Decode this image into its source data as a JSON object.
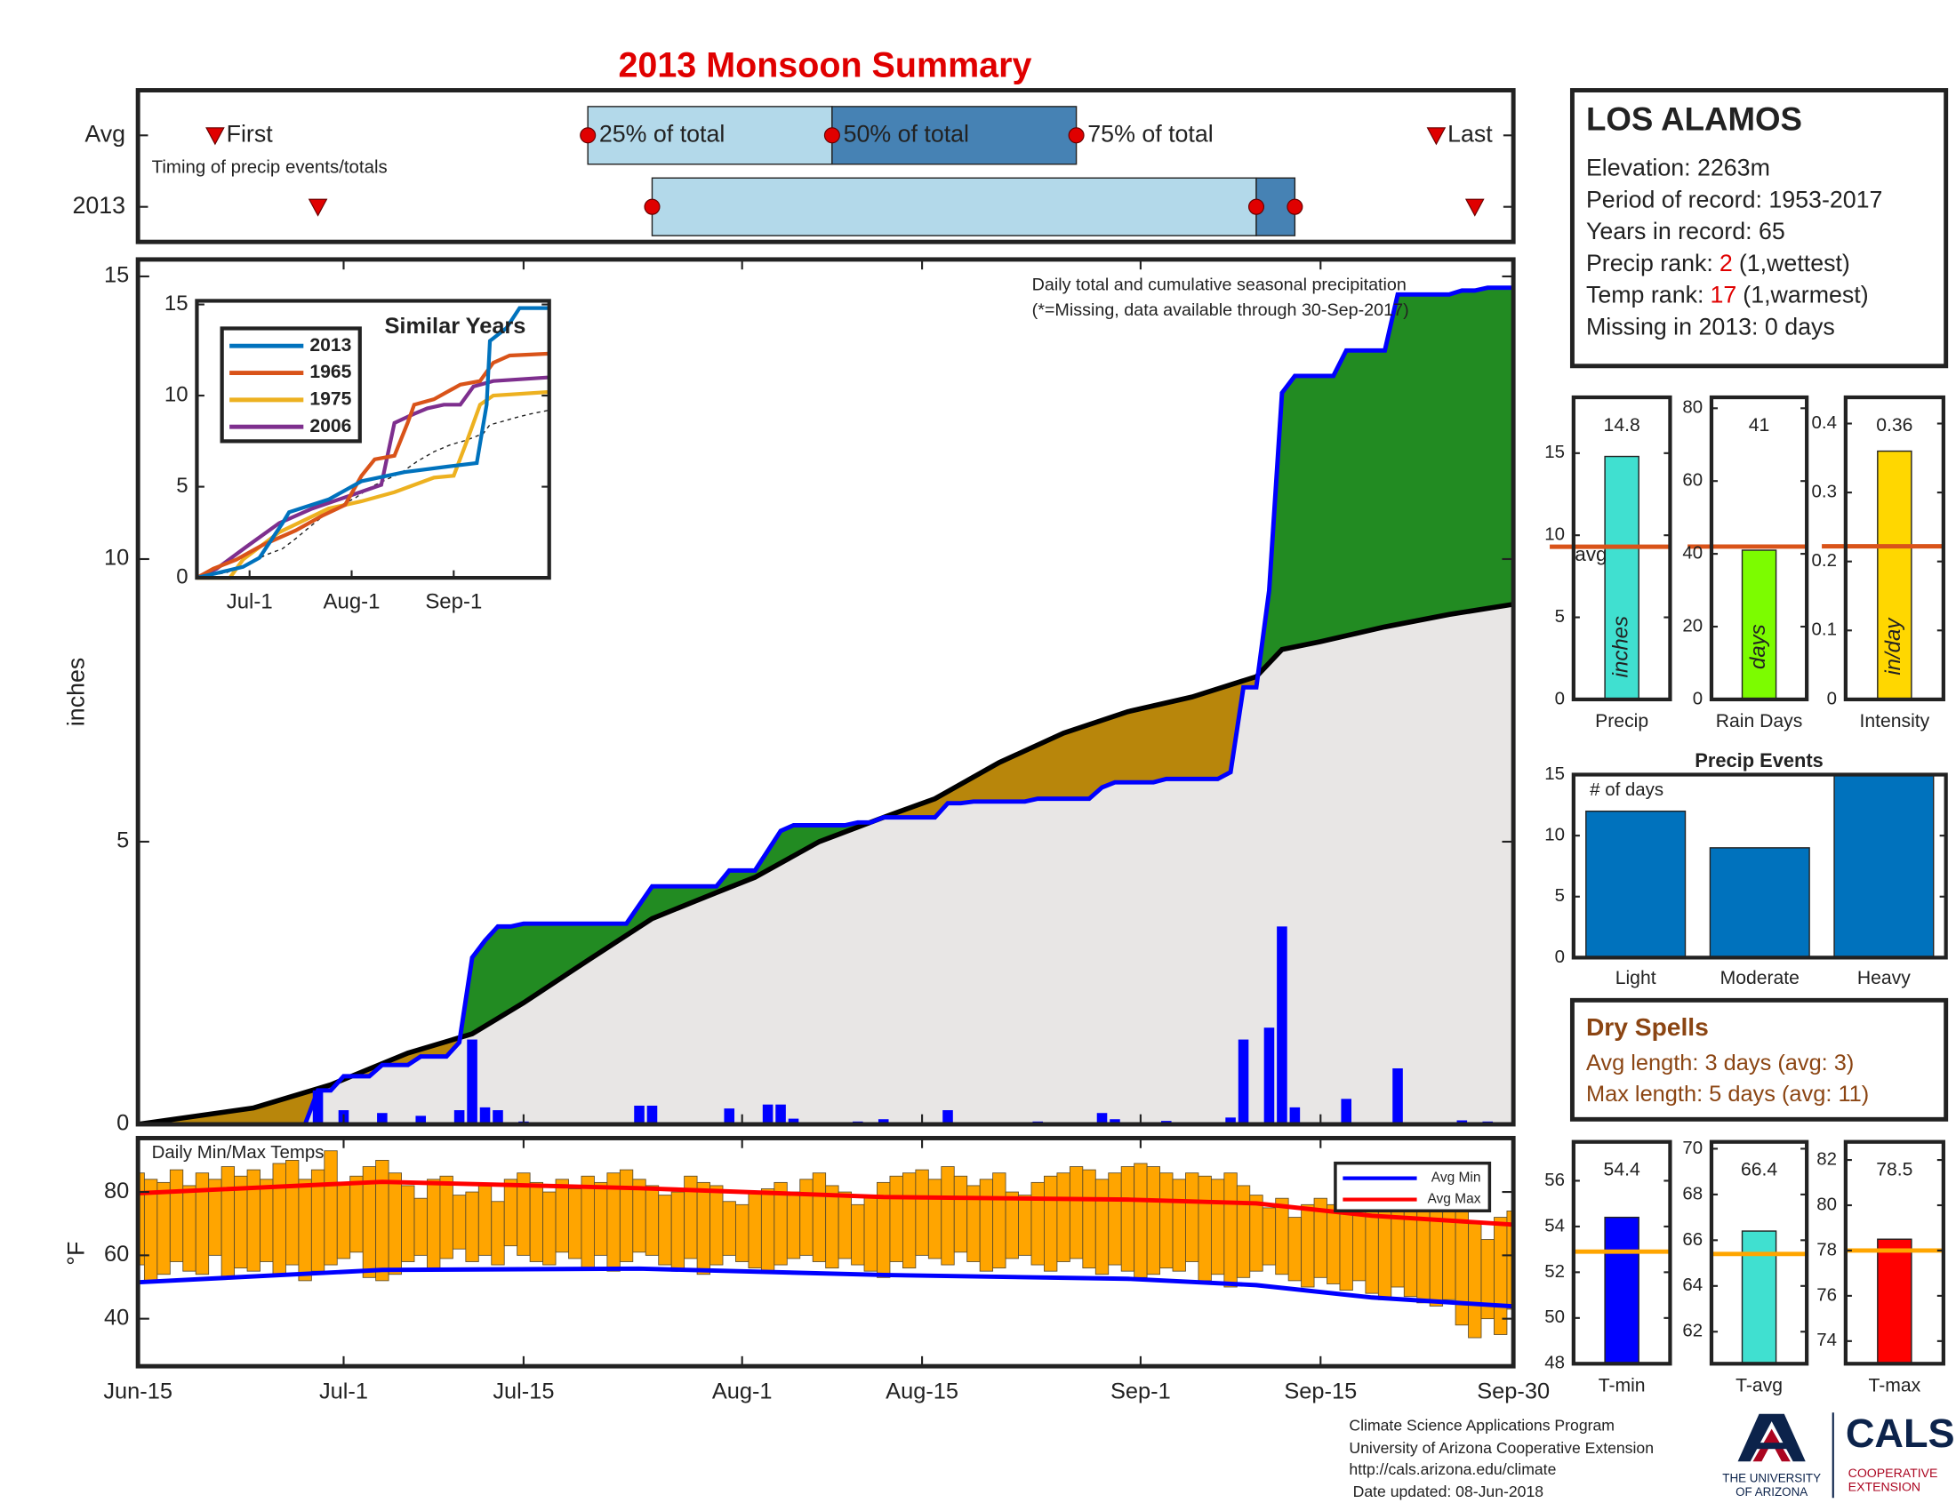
{
  "title": "2013 Monsoon Summary",
  "info": {
    "name": "LOS ALAMOS",
    "lines": [
      "Elevation: 2263m",
      "Period of record: 1953-2017",
      "Years in record: 65",
      {
        "label": "Precip rank:",
        "value": 2,
        "note": "(1,wettest)"
      },
      {
        "label": "Temp rank:",
        "value": 17,
        "note": "(1,warmest)"
      },
      "Missing in 2013: 0 days"
    ]
  },
  "dry_spells": {
    "title": "Dry Spells",
    "lines": [
      "Avg length: 3 days (avg: 3)",
      "Max length: 5 days (avg: 11)"
    ]
  },
  "footer": [
    "Climate Science Applications Program",
    "University of Arizona Cooperative Extension",
    "http://cals.arizona.edu/climate",
    "Date updated: 08-Jun-2018"
  ],
  "logos": {
    "university": [
      "THE UNIVERSITY",
      "OF ARIZONA"
    ],
    "college": "CALS",
    "extension": [
      "COOPERATIVE",
      "EXTENSION"
    ]
  },
  "chart_data": [
    {
      "type": "timing",
      "note": "Timing of precip events/totals",
      "markers": [
        "First",
        "25% of total",
        "50% of total",
        "75% of total",
        "Last"
      ],
      "colors": [
        "#b3d9ea",
        "#4682b4"
      ],
      "marker_color": "#e00000",
      "series": [
        {
          "name": "Avg",
          "values": [
            6,
            35,
            54,
            73,
            101
          ]
        },
        {
          "name": "2013",
          "values": [
            14,
            40,
            87,
            90,
            104
          ]
        }
      ]
    },
    {
      "type": "cumulative",
      "annotation": "Daily total and cumulative seasonal precipitation",
      "note": "(*=Missing, data available through 30-Sep-2017)",
      "ylabel": "inches",
      "ylim": [
        0,
        15.3
      ],
      "yticks": [
        0,
        5,
        10,
        15
      ],
      "colors": {
        "daily": "#0000ff",
        "cumulative": "#0000ff",
        "average": "#000000",
        "above": "#228b22",
        "below": "#b8860b",
        "base": "#e8e6e5"
      },
      "daily": [
        0,
        0,
        0,
        0,
        0,
        0,
        0,
        0,
        0,
        0,
        0,
        0,
        0,
        0,
        0.6,
        0,
        0.25,
        0,
        0,
        0.2,
        0,
        0,
        0.15,
        0,
        0,
        0.25,
        1.5,
        0.3,
        0.25,
        0,
        0.05,
        0,
        0,
        0,
        0,
        0,
        0,
        0,
        0,
        0.33,
        0.33,
        0,
        0,
        0,
        0,
        0,
        0.28,
        0,
        0,
        0.35,
        0.35,
        0.1,
        0,
        0,
        0,
        0,
        0.05,
        0,
        0.09,
        0,
        0,
        0,
        0,
        0.25,
        0,
        0.03,
        0,
        0,
        0,
        0,
        0.05,
        0,
        0,
        0,
        0,
        0.2,
        0.09,
        0,
        0,
        0,
        0.06,
        0,
        0,
        0,
        0,
        0.12,
        1.5,
        0,
        1.71,
        3.5,
        0.3,
        0,
        0,
        0,
        0.45,
        0,
        0,
        0,
        0.99,
        0,
        0,
        0,
        0,
        0.07,
        0,
        0.05,
        0,
        0
      ],
      "average": {
        "x": [
          0,
          9,
          15,
          21,
          26,
          30,
          35,
          40,
          45,
          48,
          53,
          58,
          62,
          67,
          72,
          77,
          82,
          87,
          89,
          92,
          97,
          102,
          107
        ],
        "values": [
          0,
          0.29,
          0.7,
          1.26,
          1.6,
          2.15,
          2.9,
          3.64,
          4.1,
          4.37,
          5,
          5.43,
          5.76,
          6.4,
          6.92,
          7.3,
          7.56,
          7.92,
          8.4,
          8.54,
          8.8,
          9.02,
          9.2
        ]
      }
    },
    {
      "type": "line",
      "title": "Similar Years",
      "xlim": [
        0,
        107
      ],
      "xticks": [
        {
          "value": 16,
          "label": "Jul-1"
        },
        {
          "value": 47,
          "label": "Aug-1"
        },
        {
          "value": 78,
          "label": "Sep-1"
        }
      ],
      "ylim": [
        0,
        15.2
      ],
      "yticks": [
        0,
        5,
        10,
        15
      ],
      "series": [
        {
          "name": "2013",
          "color": "#0072bd",
          "x": [
            0,
            14,
            19,
            26,
            28,
            40,
            50,
            63,
            76,
            85,
            88,
            89,
            94,
            98,
            107
          ],
          "values": [
            0,
            0.6,
            1.1,
            3,
            3.6,
            4.3,
            5.3,
            5.8,
            6.1,
            6.3,
            9.5,
            13,
            13.7,
            14.8,
            14.8
          ]
        },
        {
          "name": "1965",
          "color": "#d95319",
          "x": [
            0,
            5,
            12,
            20,
            30,
            38,
            45,
            50,
            54,
            60,
            64,
            66,
            72,
            80,
            86,
            90,
            95,
            107
          ],
          "values": [
            0,
            0.5,
            1,
            1.8,
            2.6,
            3.4,
            4,
            5.6,
            6.5,
            6.7,
            8.5,
            9.5,
            9.8,
            10.6,
            10.8,
            11.8,
            12.2,
            12.3
          ]
        },
        {
          "name": "1975",
          "color": "#edb120",
          "x": [
            0,
            10,
            14,
            25,
            40,
            50,
            60,
            72,
            78,
            82,
            86,
            90,
            107
          ],
          "values": [
            0,
            0,
            1,
            2.5,
            3.8,
            4.2,
            4.7,
            5.5,
            5.6,
            7.5,
            9.5,
            10,
            10.2
          ]
        },
        {
          "name": "2006",
          "color": "#7e2f8e",
          "x": [
            0,
            6,
            15,
            25,
            35,
            48,
            56,
            60,
            66,
            70,
            75,
            80,
            84,
            90,
            107
          ],
          "values": [
            0,
            0.5,
            1.7,
            3,
            3.8,
            4.6,
            5.1,
            8.5,
            9,
            9.3,
            9.5,
            9.5,
            10.5,
            10.8,
            11
          ]
        }
      ]
    },
    {
      "type": "range-bar",
      "title": "Daily Min/Max Temps",
      "ylabel": "°F",
      "color": "#ffa500",
      "xlim": [
        0,
        107
      ],
      "xticks": [
        {
          "value": 0,
          "label": "Jun-15"
        },
        {
          "value": 16,
          "label": "Jul-1"
        },
        {
          "value": 30,
          "label": "Jul-15"
        },
        {
          "value": 47,
          "label": "Aug-1"
        },
        {
          "value": 61,
          "label": "Aug-15"
        },
        {
          "value": 78,
          "label": "Sep-1"
        },
        {
          "value": 92,
          "label": "Sep-15"
        },
        {
          "value": 107,
          "label": "Sep-30"
        }
      ],
      "ylim": [
        25,
        97
      ],
      "yticks": [
        40,
        60,
        80
      ],
      "max": [
        86,
        84,
        83,
        87,
        82,
        86,
        84,
        88,
        85,
        87,
        84,
        89,
        90,
        84,
        87,
        93,
        83,
        85,
        88,
        90,
        86,
        82,
        78,
        84,
        85,
        79,
        80,
        82,
        77,
        84,
        86,
        83,
        80,
        84,
        81,
        85,
        83,
        86,
        87,
        84,
        82,
        79,
        80,
        85,
        83,
        82,
        77,
        76,
        80,
        81,
        83,
        80,
        84,
        86,
        82,
        80,
        76,
        79,
        83,
        85,
        86,
        87,
        84,
        88,
        85,
        82,
        84,
        86,
        80,
        79,
        83,
        85,
        86,
        88,
        87,
        84,
        86,
        88,
        89,
        88,
        86,
        84,
        86,
        85,
        84,
        86,
        82,
        79,
        75,
        78,
        72,
        76,
        78,
        76,
        79,
        77,
        78,
        76,
        74,
        75,
        78,
        74,
        76,
        75,
        70,
        65,
        72,
        74
      ],
      "min": [
        57,
        52,
        54,
        58,
        55,
        54,
        60,
        53,
        56,
        55,
        58,
        54,
        57,
        52,
        55,
        57,
        59,
        61,
        53,
        52,
        54,
        58,
        60,
        56,
        59,
        62,
        58,
        60,
        57,
        63,
        60,
        58,
        57,
        61,
        59,
        56,
        60,
        55,
        58,
        61,
        60,
        57,
        55,
        59,
        54,
        57,
        60,
        58,
        56,
        55,
        57,
        59,
        60,
        58,
        56,
        59,
        57,
        55,
        53,
        58,
        56,
        60,
        59,
        57,
        61,
        58,
        55,
        56,
        59,
        60,
        57,
        55,
        58,
        59,
        56,
        54,
        57,
        55,
        53,
        54,
        56,
        55,
        58,
        52,
        54,
        50,
        53,
        55,
        57,
        54,
        52,
        50,
        53,
        51,
        49,
        52,
        48,
        46,
        50,
        47,
        45,
        44,
        46,
        38,
        34,
        40,
        35,
        43
      ],
      "series": [
        {
          "name": "Avg Min",
          "color": "#0000ff",
          "x": [
            0,
            19,
            39,
            58,
            77,
            87,
            96,
            107
          ],
          "values": [
            51.5,
            55.4,
            55.8,
            53.8,
            52.6,
            50.6,
            46.7,
            43.9
          ]
        },
        {
          "name": "Avg Max",
          "color": "#ff0000",
          "x": [
            0,
            19,
            39,
            58,
            77,
            87,
            96,
            107
          ],
          "values": [
            79.6,
            83.2,
            81.2,
            78.4,
            77.6,
            76.4,
            72.5,
            69.7
          ]
        }
      ]
    },
    {
      "type": "stat",
      "label": "Precip",
      "unit": "inches",
      "value": 14.8,
      "average": 9.3,
      "average_label": "avg",
      "average_color": "#d95319",
      "color": "#40e0d0",
      "ylim": [
        0,
        18.4
      ],
      "yticks": [
        0,
        5,
        10,
        15
      ]
    },
    {
      "type": "stat",
      "label": "Rain Days",
      "unit": "days",
      "value": 41,
      "average": 42,
      "average_color": "#d95319",
      "color": "#7cfc00",
      "ylim": [
        0,
        83
      ],
      "yticks": [
        0,
        20,
        40,
        60,
        80
      ]
    },
    {
      "type": "stat",
      "label": "Intensity",
      "unit": "in/day",
      "value": 0.36,
      "average": 0.222,
      "average_color": "#d95319",
      "color": "#ffd700",
      "ylim": [
        0,
        0.438
      ],
      "yticks": [
        0,
        0.1,
        0.2,
        0.3,
        0.4
      ]
    },
    {
      "type": "bar",
      "title": "Precip Events",
      "annotation": "# of days",
      "categories": [
        "Light",
        "Moderate",
        "Heavy"
      ],
      "values": [
        12,
        9,
        15
      ],
      "color": "#0072bd",
      "ylim": [
        0,
        15
      ],
      "yticks": [
        0,
        5,
        10,
        15
      ]
    },
    {
      "type": "stat",
      "label": "T-min",
      "value": 54.4,
      "average": 52.9,
      "average_color": "#ffa500",
      "color": "#0000ff",
      "ylim": [
        48,
        57.7
      ],
      "yticks": [
        48,
        50,
        52,
        54,
        56
      ]
    },
    {
      "type": "stat",
      "label": "T-avg",
      "value": 66.4,
      "average": 65.4,
      "average_color": "#ffa500",
      "color": "#40e0d0",
      "ylim": [
        60.6,
        70.3
      ],
      "yticks": [
        62,
        64,
        66,
        68,
        70
      ]
    },
    {
      "type": "stat",
      "label": "T-max",
      "value": 78.5,
      "average": 78,
      "average_color": "#ffa500",
      "color": "#ff0000",
      "ylim": [
        73,
        82.8
      ],
      "yticks": [
        74,
        76,
        78,
        80,
        82
      ]
    }
  ]
}
